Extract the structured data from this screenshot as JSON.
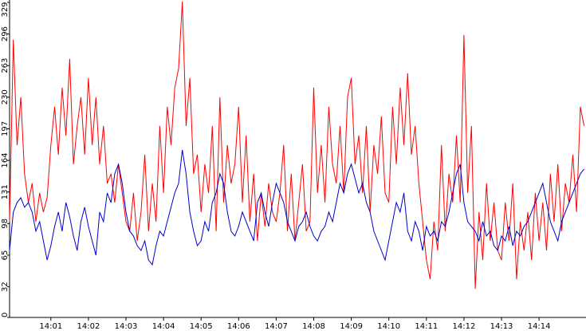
{
  "chart_data": {
    "type": "line",
    "categories": [
      null,
      null,
      null,
      null,
      null,
      null,
      null,
      null,
      null,
      null,
      null,
      "14:01",
      null,
      null,
      null,
      null,
      null,
      null,
      null,
      null,
      null,
      "14:02",
      null,
      null,
      null,
      null,
      null,
      null,
      null,
      null,
      null,
      "14:03",
      null,
      null,
      null,
      null,
      null,
      null,
      null,
      null,
      null,
      "14:04",
      null,
      null,
      null,
      null,
      null,
      null,
      null,
      null,
      null,
      "14:05",
      null,
      null,
      null,
      null,
      null,
      null,
      null,
      null,
      null,
      "14:06",
      null,
      null,
      null,
      null,
      null,
      null,
      null,
      null,
      null,
      "14:07",
      null,
      null,
      null,
      null,
      null,
      null,
      null,
      null,
      null,
      "14:08",
      null,
      null,
      null,
      null,
      null,
      null,
      null,
      null,
      null,
      "14:09",
      null,
      null,
      null,
      null,
      null,
      null,
      null,
      null,
      null,
      "14:10",
      null,
      null,
      null,
      null,
      null,
      null,
      null,
      null,
      null,
      "14:11",
      null,
      null,
      null,
      null,
      null,
      null,
      null,
      null,
      null,
      "14:12",
      null,
      null,
      null,
      null,
      null,
      null,
      null,
      null,
      null,
      "14:13",
      null,
      null,
      null,
      null,
      null,
      null,
      null,
      null,
      null,
      "14:14",
      null,
      null,
      null,
      null,
      null,
      null,
      null,
      null,
      null,
      null,
      null,
      null
    ],
    "series": [
      {
        "color": "#ff0000",
        "values": [
          100,
          290,
          180,
          230,
          150,
          120,
          140,
          100,
          130,
          110,
          125,
          180,
          220,
          170,
          240,
          190,
          270,
          160,
          200,
          230,
          170,
          250,
          180,
          230,
          160,
          200,
          140,
          150,
          120,
          160,
          130,
          100,
          90,
          130,
          80,
          110,
          170,
          90,
          140,
          100,
          200,
          130,
          220,
          180,
          240,
          260,
          330,
          200,
          250,
          150,
          170,
          110,
          160,
          130,
          200,
          90,
          230,
          120,
          180,
          140,
          160,
          220,
          120,
          190,
          100,
          150,
          80,
          130,
          95,
          140,
          110,
          100,
          130,
          180,
          90,
          150,
          80,
          120,
          160,
          90,
          100,
          240,
          130,
          180,
          120,
          220,
          160,
          140,
          200,
          130,
          230,
          250,
          160,
          190,
          130,
          200,
          110,
          180,
          150,
          210,
          130,
          120,
          220,
          160,
          240,
          180,
          255,
          170,
          200,
          140,
          100,
          60,
          40,
          100,
          70,
          180,
          90,
          150,
          120,
          190,
          120,
          295,
          130,
          200,
          30,
          110,
          60,
          140,
          80,
          120,
          70,
          60,
          120,
          80,
          140,
          40,
          100,
          70,
          110,
          60,
          130,
          80,
          120,
          70,
          150,
          100,
          160,
          90,
          140,
          120,
          170,
          110,
          220,
          200
        ]
      },
      {
        "color": "#0000cc",
        "values": [
          70,
          110,
          120,
          125,
          115,
          120,
          110,
          90,
          100,
          80,
          60,
          75,
          95,
          110,
          90,
          120,
          105,
          85,
          70,
          100,
          115,
          95,
          80,
          65,
          110,
          100,
          130,
          120,
          150,
          160,
          140,
          110,
          90,
          85,
          75,
          70,
          80,
          60,
          55,
          75,
          90,
          85,
          100,
          115,
          130,
          140,
          175,
          150,
          110,
          90,
          75,
          80,
          100,
          90,
          120,
          130,
          150,
          140,
          110,
          90,
          85,
          95,
          110,
          100,
          90,
          80,
          120,
          130,
          110,
          95,
          120,
          140,
          130,
          120,
          100,
          90,
          80,
          95,
          100,
          110,
          95,
          85,
          80,
          90,
          95,
          110,
          100,
          120,
          140,
          130,
          150,
          160,
          145,
          130,
          140,
          120,
          110,
          90,
          80,
          70,
          60,
          80,
          100,
          120,
          110,
          130,
          90,
          80,
          100,
          90,
          70,
          95,
          85,
          90,
          80,
          100,
          95,
          110,
          130,
          150,
          160,
          120,
          100,
          95,
          90,
          80,
          100,
          85,
          90,
          75,
          70,
          85,
          80,
          95,
          75,
          90,
          85,
          95,
          100,
          110,
          120,
          130,
          140,
          120,
          100,
          90,
          80,
          100,
          110,
          120,
          130,
          140,
          150,
          155
        ]
      }
    ],
    "ylim": [
      0,
      329
    ],
    "yticks": [
      0,
      32,
      65,
      98,
      131,
      164,
      197,
      230,
      263,
      296,
      329
    ]
  }
}
